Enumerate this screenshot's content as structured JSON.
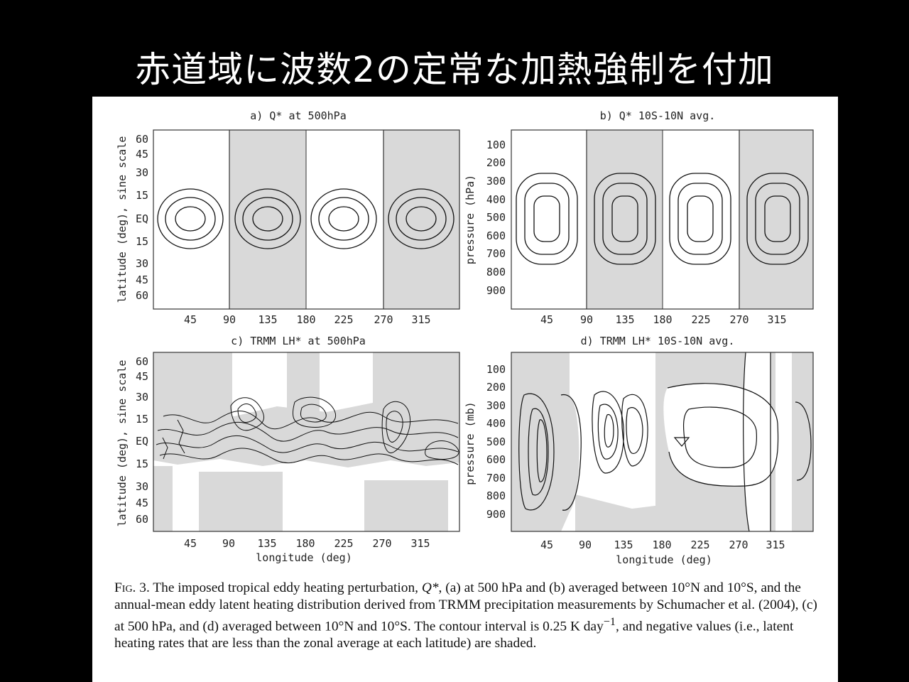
{
  "slide": {
    "title": "赤道域に波数2の定常な加熱強制を付加"
  },
  "panels": {
    "a": {
      "title": "a)  Q* at 500hPa",
      "ylabel": "latitude (deg), sine scale",
      "yticks": [
        "60",
        "45",
        "30",
        "15",
        "EQ",
        "15",
        "30",
        "45",
        "60"
      ],
      "xticks": [
        "45",
        "90",
        "135",
        "180",
        "225",
        "270",
        "315"
      ]
    },
    "b": {
      "title": "b)  Q* 10S-10N avg.",
      "ylabel": "pressure (hPa)",
      "yticks": [
        "100",
        "200",
        "300",
        "400",
        "500",
        "600",
        "700",
        "800",
        "900"
      ],
      "xticks": [
        "45",
        "90",
        "135",
        "180",
        "225",
        "270",
        "315"
      ]
    },
    "c": {
      "title": "c)  TRMM LH* at 500hPa",
      "ylabel": "latitude (deg), sine scale",
      "xlabel": "longitude (deg)",
      "yticks": [
        "60",
        "45",
        "30",
        "15",
        "EQ",
        "15",
        "30",
        "45",
        "60"
      ],
      "xticks": [
        "45",
        "90",
        "135",
        "180",
        "225",
        "270",
        "315"
      ]
    },
    "d": {
      "title": "d)  TRMM LH* 10S-10N avg.",
      "ylabel": "pressure (mb)",
      "xlabel": "longitude (deg)",
      "yticks": [
        "100",
        "200",
        "300",
        "400",
        "500",
        "600",
        "700",
        "800",
        "900"
      ],
      "xticks": [
        "45",
        "90",
        "135",
        "180",
        "225",
        "270",
        "315"
      ]
    }
  },
  "caption": {
    "fig_label": "Fig. 3.",
    "part1": " The imposed tropical eddy heating perturbation, ",
    "q": "Q*",
    "part2": ", (a) at 500 hPa and (b) averaged between 10°N and 10°S, and the annual-mean eddy latent heating distribution derived from TRMM precipitation measurements by Schumacher et al. (2004), (c) at 500 hPa, and (d) averaged between 10°N and 10°S. The contour interval is 0.25 K day",
    "sup": "−1",
    "part3": ", and negative values (i.e., latent heating rates that are less than the zonal average at each latitude) are shaded."
  }
}
